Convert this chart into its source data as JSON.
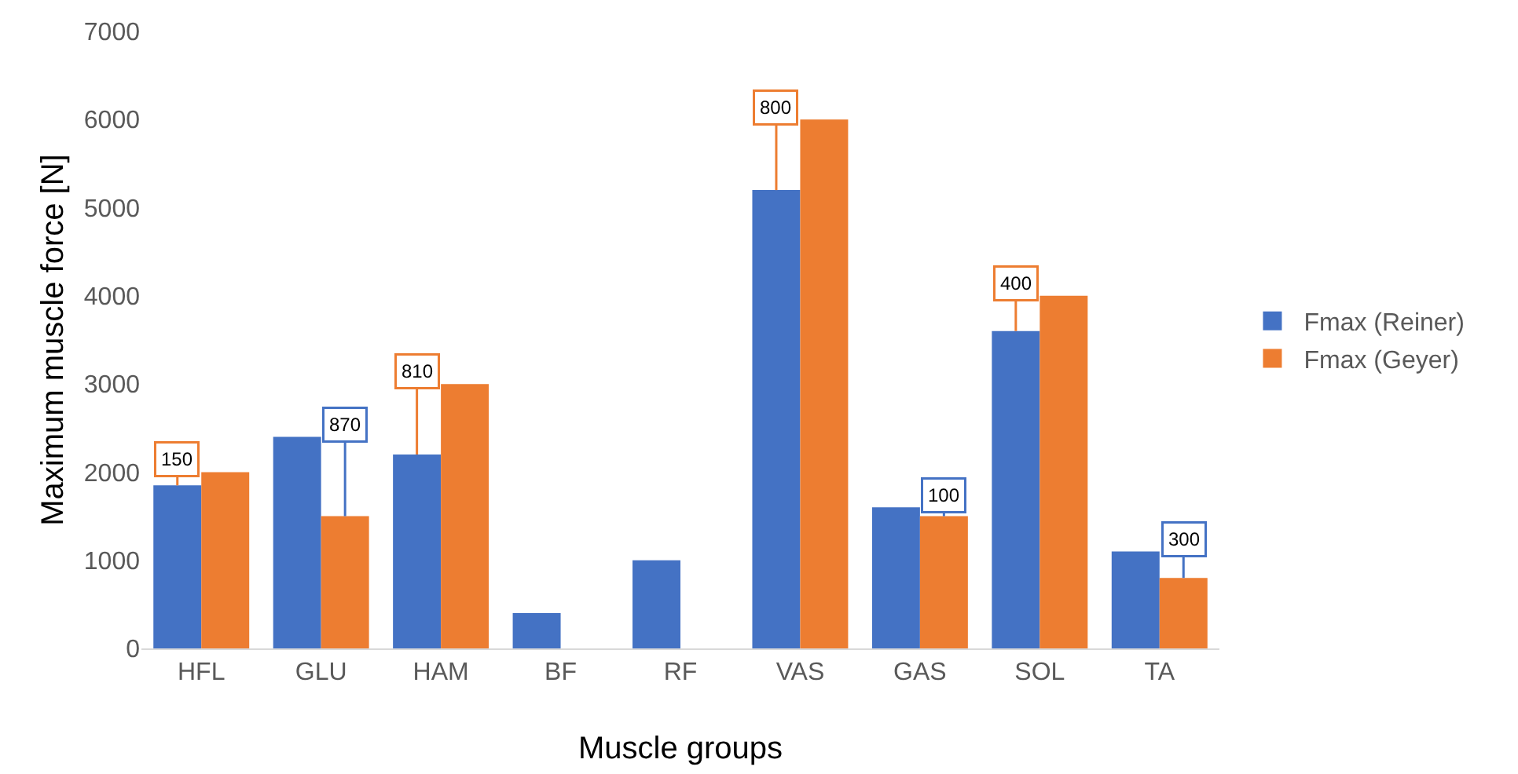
{
  "chart_data": {
    "type": "bar",
    "xlabel": "Muscle groups",
    "ylabel": "Maximum muscle force [N]",
    "categories": [
      "HFL",
      "GLU",
      "HAM",
      "BF",
      "RF",
      "VAS",
      "GAS",
      "SOL",
      "TA"
    ],
    "series": [
      {
        "name": "Fmax (Reiner)",
        "color": "#4472c4",
        "values": [
          1850,
          2400,
          2200,
          400,
          1000,
          5200,
          1600,
          3600,
          1100
        ]
      },
      {
        "name": "Fmax (Geyer)",
        "color": "#ed7d31",
        "values": [
          2000,
          1500,
          3000,
          null,
          null,
          6000,
          1500,
          4000,
          800
        ]
      }
    ],
    "ylim": [
      0,
      7000
    ],
    "yticks": [
      0,
      1000,
      2000,
      3000,
      4000,
      5000,
      6000,
      7000
    ],
    "grid": false,
    "legend": "right",
    "annotations": [
      {
        "text": "150",
        "x": "HFL",
        "y": 2000
      },
      {
        "text": "870",
        "x": "GLU",
        "y": 2400
      },
      {
        "text": "810",
        "x": "HAM",
        "y": 3000
      },
      {
        "text": "800",
        "x": "VAS",
        "y": 6000
      },
      {
        "text": "100",
        "x": "GAS",
        "y": 1600
      },
      {
        "text": "400",
        "x": "SOL",
        "y": 4000
      },
      {
        "text": "300",
        "x": "TA",
        "y": 1100
      }
    ]
  }
}
